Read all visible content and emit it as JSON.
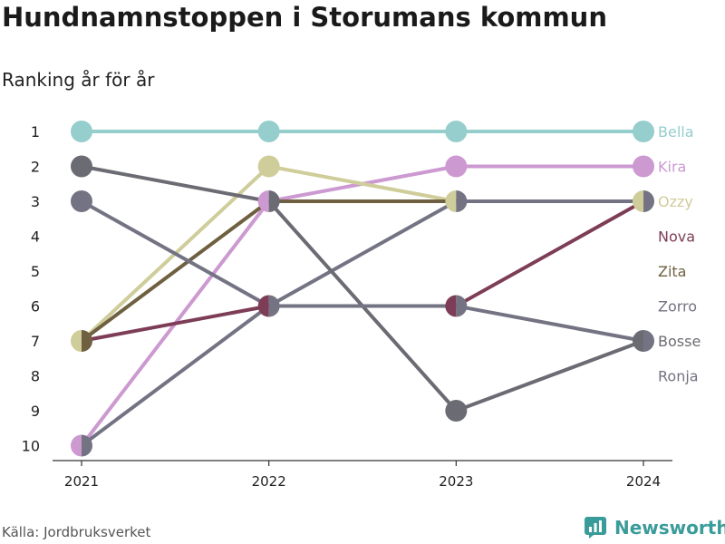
{
  "title": "Hundnamnstoppen i Storumans kommun",
  "subtitle": "Ranking år för år",
  "source": "Källa: Jordbruksverket",
  "brand": "Newsworthy",
  "chart_data": {
    "type": "line",
    "x": [
      "2021",
      "2022",
      "2023",
      "2024"
    ],
    "y_ticks": [
      1,
      2,
      3,
      4,
      5,
      6,
      7,
      8,
      9,
      10
    ],
    "ylim": [
      1,
      10
    ],
    "y_reversed": true,
    "series": [
      {
        "name": "Bella",
        "color": "#96cdcd",
        "values": [
          1,
          1,
          1,
          1
        ]
      },
      {
        "name": "Kira",
        "color": "#cc99d1",
        "values": [
          10,
          3,
          2,
          2
        ]
      },
      {
        "name": "Ozzy",
        "color": "#cfcd9a",
        "values": [
          7,
          2,
          3,
          3
        ]
      },
      {
        "name": "Nova",
        "color": "#7d3d56",
        "values": [
          7,
          6,
          6,
          3
        ]
      },
      {
        "name": "Zita",
        "color": "#6e6040",
        "values": [
          7,
          3,
          3,
          3
        ]
      },
      {
        "name": "Zorro",
        "color": "#737383",
        "values": [
          10,
          6,
          3,
          3
        ]
      },
      {
        "name": "Bosse",
        "color": "#6b6b73",
        "values": [
          2,
          3,
          9,
          7
        ]
      },
      {
        "name": "Ronja",
        "color": "#737383",
        "values": [
          3,
          6,
          6,
          7
        ]
      }
    ]
  }
}
